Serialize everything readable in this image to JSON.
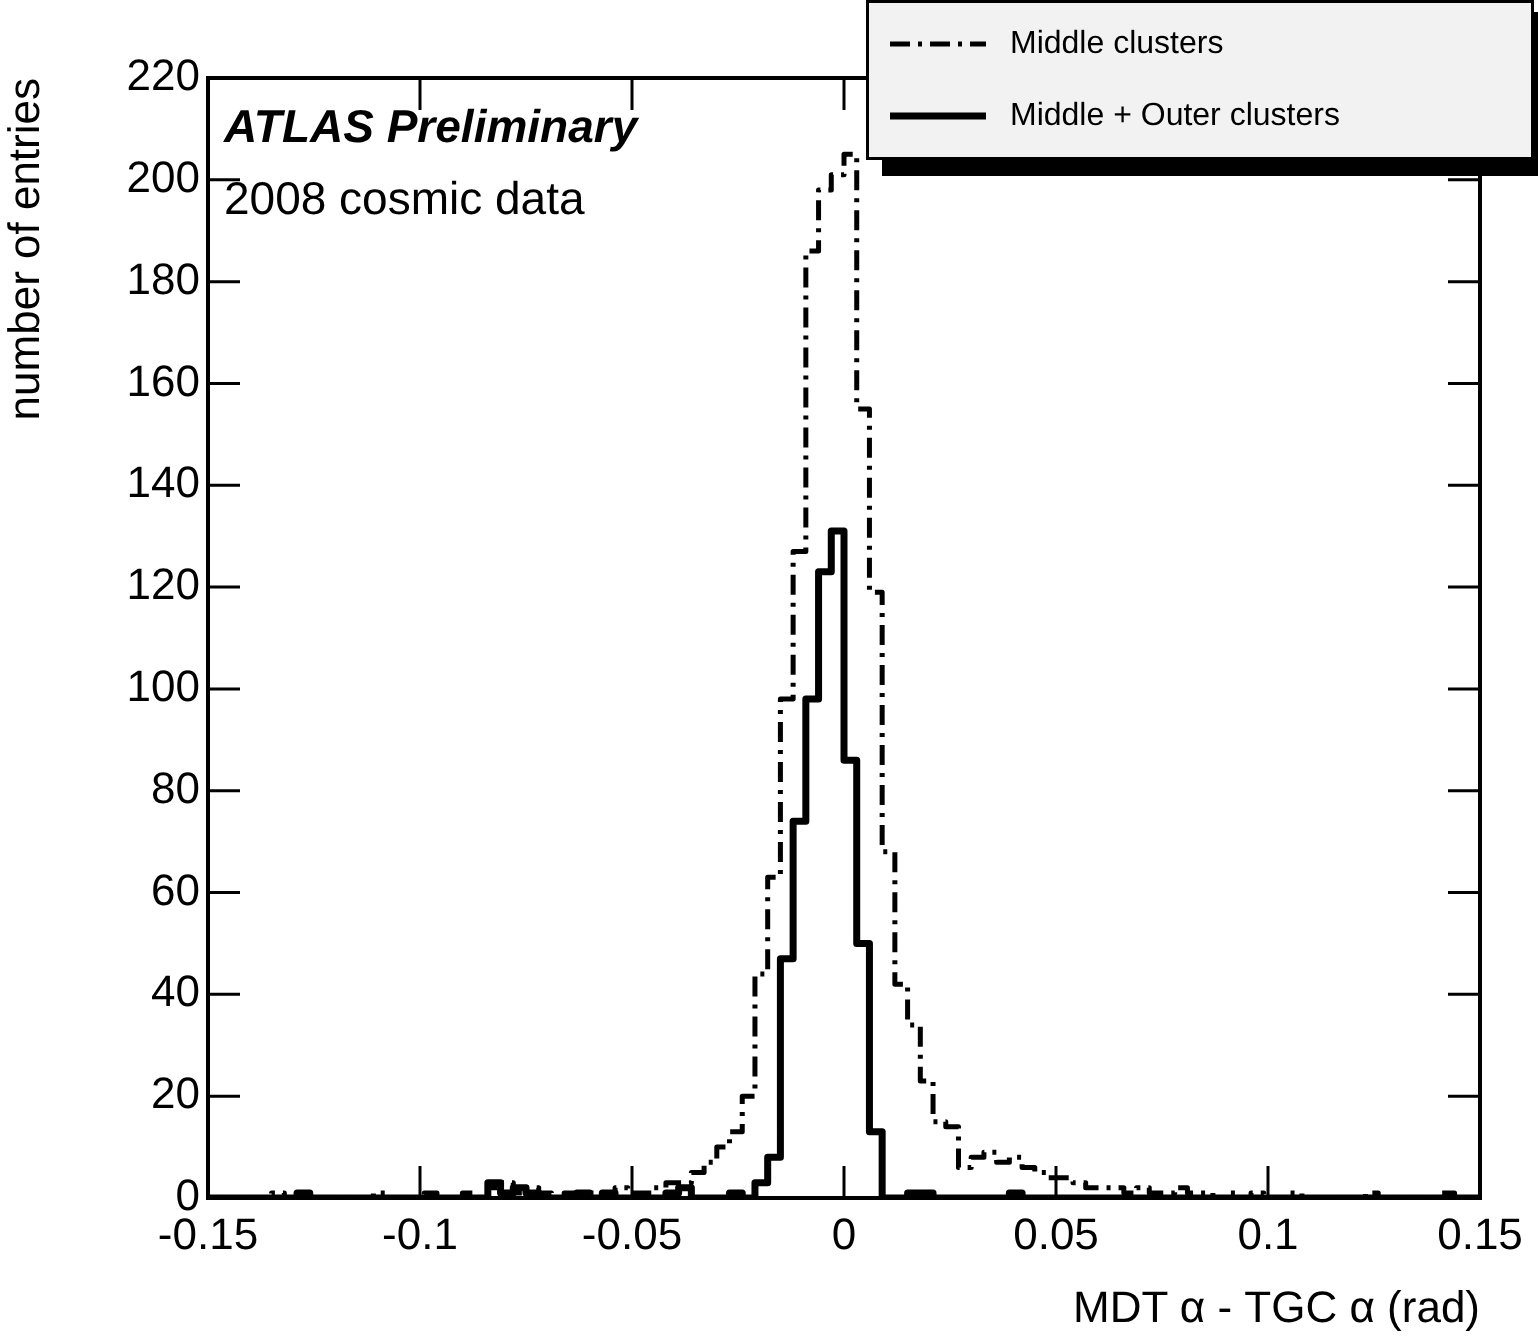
{
  "chart_data": {
    "type": "histogram",
    "xlabel": "MDT α - TGC α (rad)",
    "ylabel": "number of entries",
    "annotations": [
      "ATLAS Preliminary",
      "2008 cosmic data"
    ],
    "bins": [
      -0.15,
      -0.147,
      -0.144,
      -0.141,
      -0.138,
      -0.135,
      -0.132,
      -0.129,
      -0.126,
      -0.123,
      -0.12,
      -0.117,
      -0.114,
      -0.111,
      -0.108,
      -0.105,
      -0.102,
      -0.099,
      -0.096,
      -0.093,
      -0.09,
      -0.087,
      -0.084,
      -0.081,
      -0.078,
      -0.075,
      -0.072,
      -0.069,
      -0.066,
      -0.063,
      -0.06,
      -0.057,
      -0.054,
      -0.051,
      -0.048,
      -0.045,
      -0.042,
      -0.039,
      -0.036,
      -0.033,
      -0.03,
      -0.027,
      -0.024,
      -0.021,
      -0.018,
      -0.015,
      -0.012,
      -0.009,
      -0.006,
      -0.003,
      0,
      0.003,
      0.006,
      0.009,
      0.012,
      0.015,
      0.018,
      0.021,
      0.024,
      0.027,
      0.03,
      0.033,
      0.036,
      0.039,
      0.042,
      0.045,
      0.048,
      0.051,
      0.054,
      0.057,
      0.06,
      0.063,
      0.066,
      0.069,
      0.072,
      0.075,
      0.078,
      0.081,
      0.084,
      0.087,
      0.09,
      0.093,
      0.096,
      0.099,
      0.102,
      0.105,
      0.108,
      0.111,
      0.114,
      0.117,
      0.12,
      0.123,
      0.126,
      0.129,
      0.132,
      0.135,
      0.138,
      0.141,
      0.144,
      0.147,
      0.15
    ],
    "series": [
      {
        "name": "Middle clusters",
        "color": "#000000",
        "line_style": "dashed",
        "values": [
          0,
          0,
          0,
          0,
          0,
          1,
          0,
          0,
          0,
          0,
          0,
          0,
          0,
          1,
          0,
          0,
          0,
          1,
          0,
          0,
          1,
          0,
          2,
          3,
          1,
          2,
          1,
          0,
          1,
          1,
          1,
          1,
          2,
          1,
          1,
          2,
          3,
          3,
          5,
          7,
          10,
          13,
          20,
          44,
          63,
          98,
          127,
          186,
          198,
          201,
          205,
          155,
          119,
          68,
          42,
          34,
          23,
          15,
          14,
          6,
          8,
          9,
          7,
          8,
          6,
          5,
          4,
          4,
          3,
          2,
          2,
          2,
          1,
          2,
          1,
          1,
          2,
          1,
          1,
          0,
          1,
          0,
          1,
          0,
          0,
          1,
          0,
          0,
          0,
          0,
          0,
          1,
          0,
          0,
          0,
          0,
          0,
          1,
          0,
          0
        ]
      },
      {
        "name": "Middle + Outer clusters",
        "color": "#010101",
        "line_style": "solid",
        "values": [
          0,
          0,
          0,
          0,
          0,
          0,
          0,
          1,
          0,
          0,
          0,
          0,
          0,
          0,
          0,
          0,
          0,
          0,
          0,
          0,
          0,
          0,
          3,
          1,
          2,
          1,
          0,
          0,
          0,
          1,
          0,
          1,
          0,
          0,
          0,
          0,
          1,
          2,
          0,
          0,
          0,
          1,
          0,
          3,
          8,
          47,
          74,
          98,
          123,
          131,
          86,
          50,
          13,
          0,
          0,
          1,
          1,
          0,
          0,
          0,
          0,
          0,
          0,
          1,
          0,
          0,
          0,
          0,
          0,
          0,
          0,
          0,
          0,
          0,
          0,
          0,
          0,
          0,
          0,
          0,
          0,
          0,
          0,
          0,
          0,
          0,
          0,
          0,
          0,
          0,
          0,
          0,
          0,
          0,
          0,
          0,
          0,
          0,
          0,
          0
        ]
      }
    ],
    "xlim": [
      -0.15,
      0.15
    ],
    "xticks": [
      -0.15,
      -0.1,
      -0.05,
      0,
      0.05,
      0.1,
      0.15
    ],
    "ylim": [
      0,
      220
    ],
    "yticks": [
      0,
      20,
      40,
      60,
      80,
      100,
      120,
      140,
      160,
      180,
      200,
      220
    ],
    "grid": false,
    "legend": "top right"
  }
}
